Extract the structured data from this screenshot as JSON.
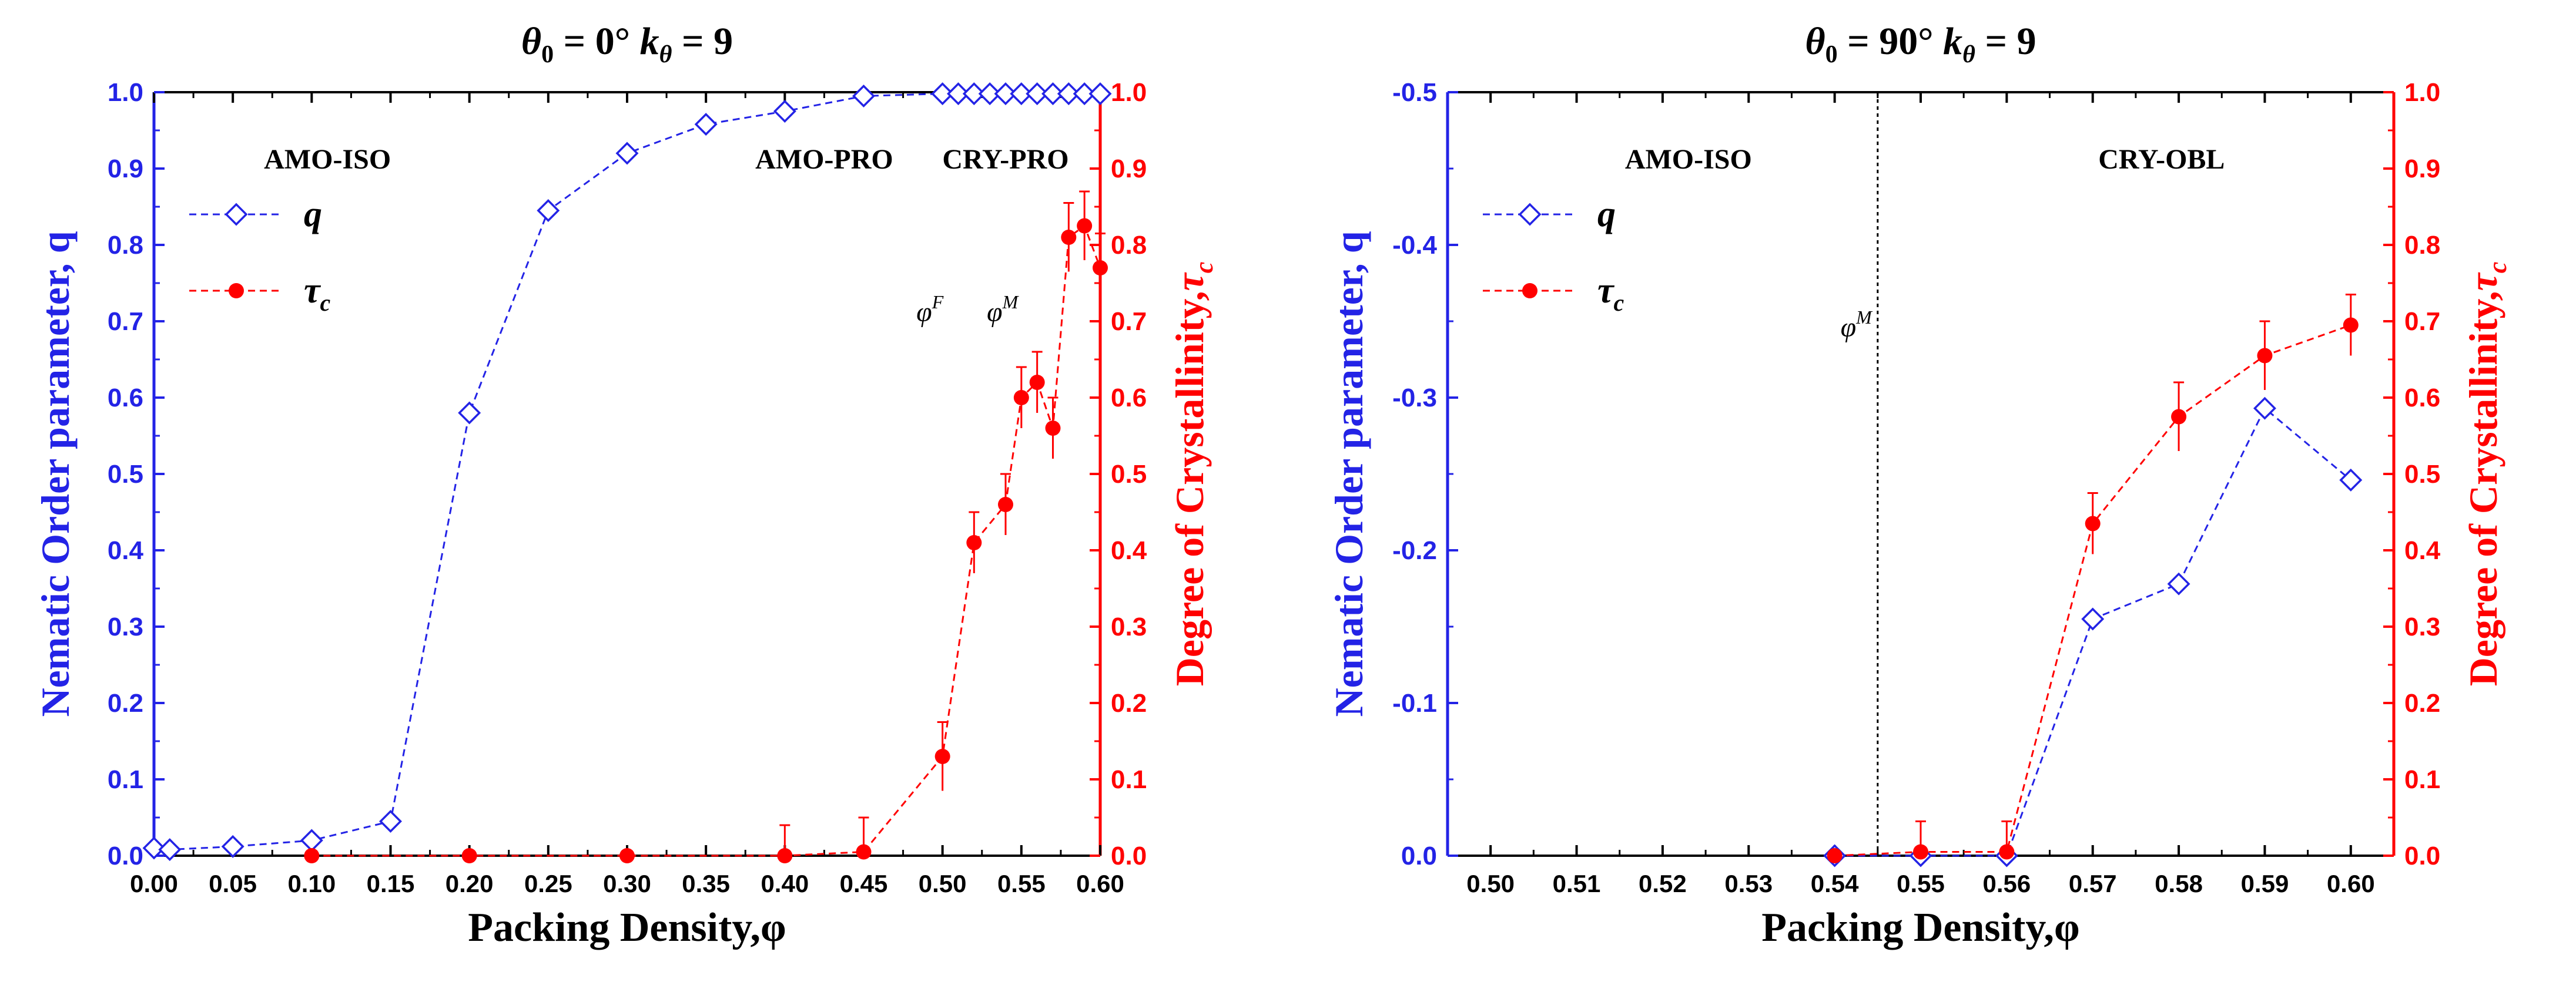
{
  "chart_data": [
    {
      "type": "line",
      "title_parts": [
        "θ",
        "0",
        " = 0° ",
        "k",
        "θ",
        " = 9"
      ],
      "xlabel": "Packing Density,φ",
      "ylabel_left": "Nematic Order parameter, q",
      "ylabel_right_parts": [
        "Degree of Crystallinity,",
        "τ",
        "c"
      ],
      "xlim": [
        0.0,
        0.6
      ],
      "ylim_left": [
        0.0,
        1.0
      ],
      "ylim_right": [
        0.0,
        1.0
      ],
      "x_ticks": [
        "0.00",
        "0.05",
        "0.10",
        "0.15",
        "0.20",
        "0.25",
        "0.30",
        "0.35",
        "0.40",
        "0.45",
        "0.50",
        "0.55",
        "0.60"
      ],
      "y_ticks_left": [
        "0.0",
        "0.1",
        "0.2",
        "0.3",
        "0.4",
        "0.5",
        "0.6",
        "0.7",
        "0.8",
        "0.9",
        "1.0"
      ],
      "y_ticks_right": [
        "0.0",
        "0.1",
        "0.2",
        "0.3",
        "0.4",
        "0.5",
        "0.6",
        "0.7",
        "0.8",
        "0.9",
        "1.0"
      ],
      "legend": {
        "position": "left",
        "entries": [
          {
            "label": "q",
            "sub": ""
          },
          {
            "label": "τ",
            "sub": "c"
          }
        ]
      },
      "annotations": [
        {
          "text": "AMO-ISO",
          "x": 0.11,
          "y": 0.9,
          "style": "bold"
        },
        {
          "text": "AMO-PRO",
          "x": 0.425,
          "y": 0.9,
          "style": "bold"
        },
        {
          "text": "CRY-PRO",
          "x": 0.54,
          "y": 0.9,
          "style": "bold"
        },
        {
          "text": "φ",
          "sup": "F",
          "x": 0.492,
          "y": 0.7,
          "style": "italic"
        },
        {
          "text": "φ",
          "sup": "M",
          "x": 0.538,
          "y": 0.7,
          "style": "italic"
        }
      ],
      "series": [
        {
          "name": "q",
          "axis": "left",
          "color": "#2323e6",
          "marker": "diamond-open",
          "x": [
            0.0,
            0.01,
            0.05,
            0.1,
            0.15,
            0.2,
            0.25,
            0.3,
            0.35,
            0.4,
            0.45,
            0.5,
            0.51,
            0.52,
            0.53,
            0.54,
            0.55,
            0.56,
            0.57,
            0.58,
            0.59,
            0.6
          ],
          "y": [
            0.01,
            0.008,
            0.012,
            0.02,
            0.045,
            0.58,
            0.845,
            0.92,
            0.958,
            0.975,
            0.995,
            0.998,
            0.998,
            0.998,
            0.998,
            0.998,
            0.998,
            0.998,
            0.998,
            0.998,
            0.998,
            0.998
          ]
        },
        {
          "name": "τc",
          "axis": "right",
          "color": "#ff0000",
          "marker": "circle-filled",
          "x": [
            0.1,
            0.2,
            0.3,
            0.4,
            0.45,
            0.5,
            0.52,
            0.54,
            0.55,
            0.56,
            0.57,
            0.58,
            0.59,
            0.6
          ],
          "y": [
            0.0,
            0.0,
            0.0,
            0.0,
            0.005,
            0.13,
            0.41,
            0.46,
            0.6,
            0.62,
            0.56,
            0.81,
            0.825,
            0.77
          ],
          "err": [
            0.0,
            0.0,
            0.0,
            0.04,
            0.045,
            0.045,
            0.04,
            0.04,
            0.04,
            0.04,
            0.04,
            0.045,
            0.045,
            0.045
          ]
        }
      ]
    },
    {
      "type": "line",
      "title_parts": [
        "θ",
        "0",
        " = 90° ",
        "k",
        "θ",
        " = 9"
      ],
      "xlabel": "Packing Density,φ",
      "ylabel_left": "Nematic Order parameter, q",
      "ylabel_right_parts": [
        "Degree of Crystallinity,",
        "τ",
        "c"
      ],
      "xlim": [
        0.495,
        0.605
      ],
      "ylim_left": [
        0.0,
        -0.5
      ],
      "ylim_right": [
        0.0,
        1.0
      ],
      "x_ticks": [
        "0.50",
        "0.51",
        "0.52",
        "0.53",
        "0.54",
        "0.55",
        "0.56",
        "0.57",
        "0.58",
        "0.59",
        "0.60"
      ],
      "y_ticks_left": [
        "0.0",
        "-0.1",
        "-0.2",
        "-0.3",
        "-0.4",
        "-0.5"
      ],
      "y_ticks_right": [
        "0.0",
        "0.1",
        "0.2",
        "0.3",
        "0.4",
        "0.5",
        "0.6",
        "0.7",
        "0.8",
        "0.9",
        "1.0"
      ],
      "legend": {
        "position": "left",
        "entries": [
          {
            "label": "q",
            "sub": ""
          },
          {
            "label": "τ",
            "sub": "c"
          }
        ]
      },
      "vline_x": 0.545,
      "annotations": [
        {
          "text": "AMO-ISO",
          "x": 0.523,
          "y": 0.9,
          "style": "bold"
        },
        {
          "text": "CRY-OBL",
          "x": 0.578,
          "y": 0.9,
          "style": "bold"
        },
        {
          "text": "φ",
          "sup": "M",
          "x": 0.5425,
          "y": 0.68,
          "style": "italic"
        }
      ],
      "series": [
        {
          "name": "q",
          "axis": "left",
          "color": "#2323e6",
          "marker": "diamond-open",
          "x": [
            0.54,
            0.55,
            0.56,
            0.57,
            0.58,
            0.59,
            0.6
          ],
          "y": [
            0.0,
            0.0,
            0.0,
            -0.155,
            -0.178,
            -0.293,
            -0.246
          ]
        },
        {
          "name": "τc",
          "axis": "right",
          "color": "#ff0000",
          "marker": "circle-filled",
          "x": [
            0.54,
            0.55,
            0.56,
            0.57,
            0.58,
            0.59,
            0.6
          ],
          "y": [
            0.0,
            0.005,
            0.005,
            0.435,
            0.575,
            0.655,
            0.695
          ],
          "err": [
            0.0,
            0.04,
            0.04,
            0.04,
            0.045,
            0.045,
            0.04
          ]
        }
      ]
    }
  ]
}
